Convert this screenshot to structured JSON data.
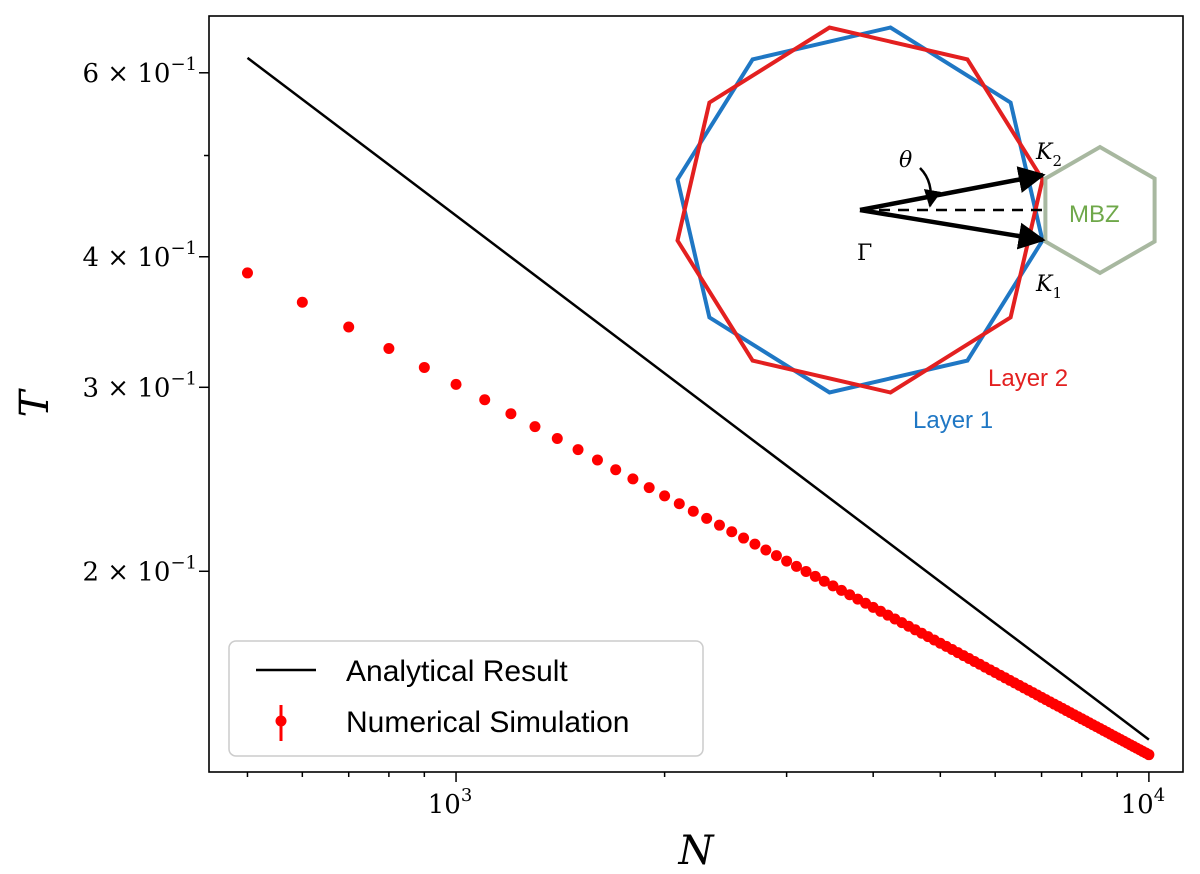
{
  "chart_data": {
    "type": "line",
    "xscale": "log",
    "yscale": "log",
    "xlabel": "N",
    "ylabel": "T",
    "xlim": [
      440,
      11200
    ],
    "ylim": [
      0.1285,
      0.68
    ],
    "x_ticks": [
      {
        "value": 1000,
        "base": "10",
        "exp": "3"
      },
      {
        "value": 10000,
        "base": "10",
        "exp": "4"
      }
    ],
    "y_ticks": [
      {
        "value": 0.6,
        "mant": "6",
        "exp": "−1"
      },
      {
        "value": 0.4,
        "mant": "4",
        "exp": "−1"
      },
      {
        "value": 0.3,
        "mant": "3",
        "exp": "−1"
      },
      {
        "value": 0.2,
        "mant": "2",
        "exp": "−1"
      }
    ],
    "y_times_sign": "× 10",
    "series": [
      {
        "name": "Analytical Result",
        "kind": "line",
        "color": "#000000",
        "x": [
          500,
          10000
        ],
        "y": [
          0.62,
          0.138
        ]
      },
      {
        "name": "Numerical Simulation",
        "kind": "points_with_errorbars",
        "color": "#ff0000",
        "x_start": 500,
        "x_step": 100,
        "x_end": 10000,
        "y_start": 0.386,
        "y_end": 0.1335
      }
    ],
    "legend": {
      "position": "lower-left",
      "entries": [
        "Analytical Result",
        "Numerical Simulation"
      ]
    },
    "inset": {
      "labels": {
        "theta": "θ",
        "gamma": "Γ",
        "k2": "K",
        "k2_sub": "2",
        "k1": "K",
        "k1_sub": "1",
        "mbz": "MBZ",
        "layer2": "Layer 2",
        "layer1": "Layer 1"
      },
      "colors": {
        "layer1": "#1f77c4",
        "layer2": "#e32020",
        "mbz_line": "#a8b8a0",
        "mbz_text": "#6fa84a",
        "arrow": "#000000"
      }
    }
  }
}
